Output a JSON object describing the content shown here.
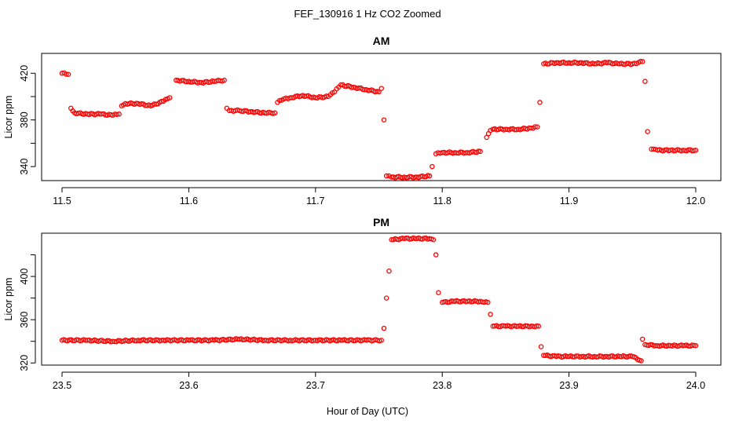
{
  "figure": {
    "title": "FEF_130916  1 Hz CO2 Zoomed",
    "xlabel": "Hour of Day (UTC)",
    "point_color": "#ff0000"
  },
  "chart_data": [
    {
      "type": "scatter",
      "title": "AM",
      "xlabel": "",
      "ylabel": "Licor ppm",
      "xlim": [
        11.5,
        12.0
      ],
      "ylim": [
        328,
        437
      ],
      "x_ticks": [
        11.5,
        11.6,
        11.7,
        11.8,
        11.9,
        12.0
      ],
      "x_tick_labels": [
        "11.5",
        "11.6",
        "11.7",
        "11.8",
        "11.9",
        "12.0"
      ],
      "y_ticks": [
        340,
        360,
        380,
        400,
        420
      ],
      "y_tick_labels": [
        "340",
        "",
        "380",
        "",
        "420"
      ],
      "series": [
        {
          "marker": "open-circle",
          "color": "#ff0000",
          "x": [
            11.5,
            11.505,
            11.507,
            11.51,
            11.52,
            11.53,
            11.54,
            11.545,
            11.547,
            11.55,
            11.56,
            11.57,
            11.58,
            11.585,
            11.59,
            11.6,
            11.61,
            11.62,
            11.628,
            11.63,
            11.632,
            11.64,
            11.65,
            11.66,
            11.668,
            11.67,
            11.675,
            11.68,
            11.69,
            11.7,
            11.71,
            11.715,
            11.72,
            11.73,
            11.74,
            11.75,
            11.752,
            11.754,
            11.756,
            11.76,
            11.77,
            11.78,
            11.79,
            11.792,
            11.795,
            11.8,
            11.81,
            11.82,
            11.83,
            11.835,
            11.838,
            11.84,
            11.85,
            11.86,
            11.87,
            11.875,
            11.877,
            11.88,
            11.89,
            11.9,
            11.91,
            11.92,
            11.93,
            11.94,
            11.95,
            11.958,
            11.96,
            11.962,
            11.965,
            11.97,
            11.98,
            11.99,
            12.0
          ],
          "y": [
            420,
            419,
            390,
            386,
            385,
            385,
            384,
            385,
            392,
            394,
            394,
            392,
            396,
            399,
            414,
            413,
            412,
            413,
            414,
            390,
            388,
            388,
            387,
            386,
            386,
            395,
            398,
            399,
            401,
            399,
            400,
            404,
            410,
            408,
            406,
            404,
            407,
            380,
            332,
            331,
            331,
            331,
            332,
            340,
            351,
            352,
            352,
            352,
            353,
            365,
            371,
            372,
            372,
            372,
            373,
            374,
            395,
            428,
            429,
            429,
            429,
            428,
            429,
            428,
            428,
            430,
            413,
            370,
            355,
            354,
            354,
            354,
            354
          ]
        }
      ]
    },
    {
      "type": "scatter",
      "title": "PM",
      "xlabel": "",
      "ylabel": "Licor ppm",
      "xlim": [
        23.5,
        24.0
      ],
      "ylim": [
        318,
        440
      ],
      "x_ticks": [
        23.5,
        23.6,
        23.7,
        23.8,
        23.9,
        24.0
      ],
      "x_tick_labels": [
        "23.5",
        "23.6",
        "23.7",
        "23.8",
        "23.9",
        "24.0"
      ],
      "y_ticks": [
        320,
        340,
        360,
        380,
        400,
        420
      ],
      "y_tick_labels": [
        "320",
        "",
        "360",
        "",
        "400",
        ""
      ],
      "series": [
        {
          "marker": "open-circle",
          "color": "#ff0000",
          "x": [
            23.5,
            23.52,
            23.54,
            23.56,
            23.58,
            23.6,
            23.62,
            23.64,
            23.66,
            23.68,
            23.7,
            23.72,
            23.74,
            23.752,
            23.754,
            23.756,
            23.758,
            23.76,
            23.77,
            23.78,
            23.79,
            23.793,
            23.795,
            23.797,
            23.8,
            23.81,
            23.82,
            23.83,
            23.836,
            23.838,
            23.84,
            23.85,
            23.86,
            23.87,
            23.876,
            23.878,
            23.88,
            23.89,
            23.9,
            23.91,
            23.92,
            23.93,
            23.94,
            23.95,
            23.957,
            23.958,
            23.96,
            23.97,
            23.98,
            23.99,
            24.0
          ],
          "y": [
            341,
            341,
            340,
            341,
            341,
            341,
            341,
            342,
            341,
            341,
            341,
            341,
            341,
            341,
            352,
            380,
            405,
            434,
            435,
            435,
            435,
            434,
            420,
            385,
            376,
            377,
            377,
            377,
            376,
            365,
            354,
            354,
            354,
            354,
            354,
            335,
            327,
            326,
            326,
            326,
            326,
            326,
            326,
            326,
            322,
            342,
            337,
            336,
            336,
            336,
            336
          ]
        }
      ]
    }
  ]
}
